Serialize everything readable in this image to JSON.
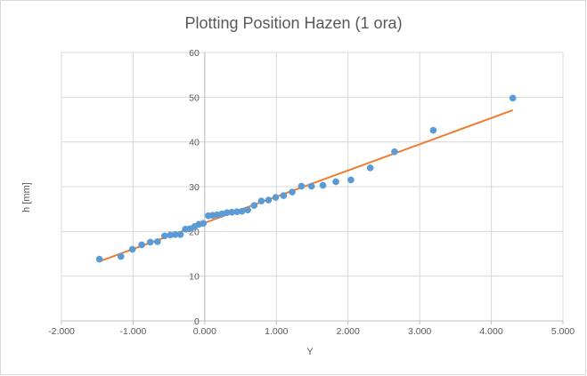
{
  "chart_data": {
    "type": "scatter",
    "title": "Plotting Position Hazen (1 ora)",
    "xlabel": "Y",
    "ylabel": "h [mm]",
    "xlim": [
      -2,
      5
    ],
    "ylim": [
      0,
      60
    ],
    "x_ticks": [
      -2,
      -1,
      0,
      1,
      2,
      3,
      4,
      5
    ],
    "x_tick_labels": [
      "-2.000",
      "-1.000",
      "0.000",
      "1.000",
      "2.000",
      "3.000",
      "4.000",
      "5.000"
    ],
    "y_ticks": [
      0,
      10,
      20,
      30,
      40,
      50,
      60
    ],
    "y_tick_labels": [
      "0",
      "10",
      "20",
      "30",
      "40",
      "50",
      "60"
    ],
    "grid": true,
    "legend": "none",
    "series": [
      {
        "type": "scatter",
        "color": "#5b9bd5",
        "points": [
          [
            -1.47,
            13.8
          ],
          [
            -1.17,
            14.4
          ],
          [
            -1.01,
            16.0
          ],
          [
            -0.88,
            17.0
          ],
          [
            -0.76,
            17.6
          ],
          [
            -0.66,
            17.7
          ],
          [
            -0.56,
            19.0
          ],
          [
            -0.48,
            19.2
          ],
          [
            -0.41,
            19.3
          ],
          [
            -0.34,
            19.3
          ],
          [
            -0.27,
            20.5
          ],
          [
            -0.21,
            20.6
          ],
          [
            -0.14,
            21.1
          ],
          [
            -0.08,
            21.6
          ],
          [
            -0.02,
            21.8
          ],
          [
            0.05,
            23.5
          ],
          [
            0.11,
            23.6
          ],
          [
            0.17,
            23.7
          ],
          [
            0.24,
            23.9
          ],
          [
            0.31,
            24.2
          ],
          [
            0.38,
            24.3
          ],
          [
            0.45,
            24.4
          ],
          [
            0.52,
            24.5
          ],
          [
            0.6,
            24.8
          ],
          [
            0.69,
            25.8
          ],
          [
            0.79,
            26.8
          ],
          [
            0.89,
            27.0
          ],
          [
            0.99,
            27.6
          ],
          [
            1.1,
            28.0
          ],
          [
            1.22,
            28.8
          ],
          [
            1.35,
            30.1
          ],
          [
            1.49,
            30.1
          ],
          [
            1.65,
            30.3
          ],
          [
            1.83,
            31.1
          ],
          [
            2.04,
            31.5
          ],
          [
            2.31,
            34.2
          ],
          [
            2.65,
            37.8
          ],
          [
            3.19,
            42.6
          ],
          [
            4.3,
            49.8
          ]
        ]
      },
      {
        "type": "line",
        "color": "#ed7d31",
        "x": [
          -1.47,
          4.3
        ],
        "y": [
          13.3,
          47.1
        ]
      }
    ]
  }
}
